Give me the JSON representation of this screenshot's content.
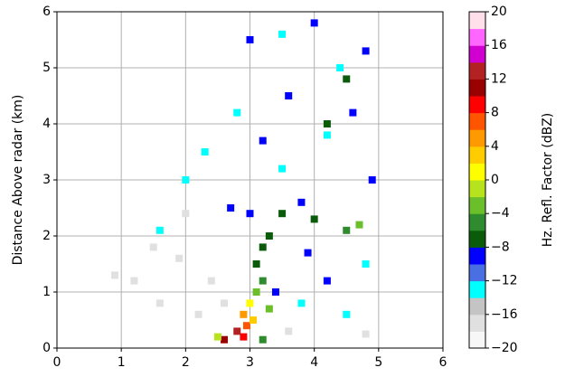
{
  "chart_data": {
    "type": "scatter",
    "ylabel": "Distance Above radar  (km)",
    "xlim": [
      0,
      6
    ],
    "ylim": [
      0,
      6
    ],
    "xticks": [
      0,
      1,
      2,
      3,
      4,
      5,
      6
    ],
    "yticks": [
      0,
      1,
      2,
      3,
      4,
      5,
      6
    ],
    "grid": true,
    "x": [
      2.9,
      2.95,
      2.9,
      3.0,
      3.1,
      3.2,
      3.1,
      3.2,
      3.3,
      3.0,
      3.5,
      4.0,
      4.5,
      4.7,
      2.7,
      3.8,
      2.6,
      2.8,
      3.05,
      2.5,
      3.2,
      3.3,
      2.3,
      2.8,
      3.5,
      4.2,
      2.0,
      4.8,
      3.8,
      4.5,
      3.5,
      4.4,
      1.6,
      3.0,
      3.6,
      4.0,
      4.6,
      3.2,
      4.9,
      4.2,
      3.9,
      4.8,
      3.4,
      4.5,
      4.2,
      1.2,
      1.6,
      1.9,
      2.2,
      1.5,
      2.0,
      0.9,
      2.4,
      2.6,
      4.8,
      3.6
    ],
    "y": [
      0.2,
      0.4,
      0.6,
      0.8,
      1.0,
      1.2,
      1.5,
      1.8,
      2.0,
      2.4,
      2.4,
      2.3,
      2.1,
      2.2,
      2.5,
      2.6,
      0.15,
      0.3,
      0.5,
      0.2,
      0.15,
      0.7,
      3.5,
      4.2,
      3.2,
      3.8,
      3.0,
      1.5,
      0.8,
      0.6,
      5.6,
      5.0,
      2.1,
      5.5,
      4.5,
      5.8,
      4.2,
      3.7,
      3.0,
      1.2,
      1.7,
      5.3,
      1.0,
      4.8,
      4.0,
      1.2,
      0.8,
      1.6,
      0.6,
      1.8,
      2.4,
      1.3,
      1.2,
      0.8,
      0.25,
      0.3
    ],
    "values": [
      8,
      6,
      4,
      0,
      -4,
      -6,
      -8,
      -8,
      -8,
      -10,
      -8,
      -8,
      -6,
      -4,
      -10,
      -10,
      10,
      12,
      2,
      -2,
      -6,
      -4,
      -13,
      -13,
      -13,
      -13,
      -13,
      -13,
      -13,
      -13,
      -13,
      -13,
      -13,
      -10,
      -10,
      -10,
      -10,
      -10,
      -10,
      -10,
      -10,
      -10,
      -10,
      -7,
      -7,
      -17,
      -17,
      -17,
      -17,
      -17,
      -17,
      -17,
      -17,
      -17,
      -17,
      -17
    ],
    "colorbar": {
      "label": "Hz. Refl. Factor (dBZ)",
      "clim": [
        -20,
        20
      ],
      "ticks": [
        {
          "value": -20,
          "label": "−20"
        },
        {
          "value": -16,
          "label": "−16"
        },
        {
          "value": -12,
          "label": "−12"
        },
        {
          "value": -8,
          "label": "−8"
        },
        {
          "value": -4,
          "label": "−4"
        },
        0,
        4,
        8,
        12,
        16,
        20
      ],
      "colors": [
        "#f7f7f7",
        "#e0e0e0",
        "#c4c4c4",
        "#00ffff",
        "#4a6fe3",
        "#0000ff",
        "#0a5c0a",
        "#2e8b2e",
        "#6abf2a",
        "#b7e31e",
        "#ffff00",
        "#ffcc00",
        "#ff9900",
        "#ff5500",
        "#ff0000",
        "#990000",
        "#b22222",
        "#d000d0",
        "#ff66ff",
        "#ffe0ea"
      ]
    }
  }
}
